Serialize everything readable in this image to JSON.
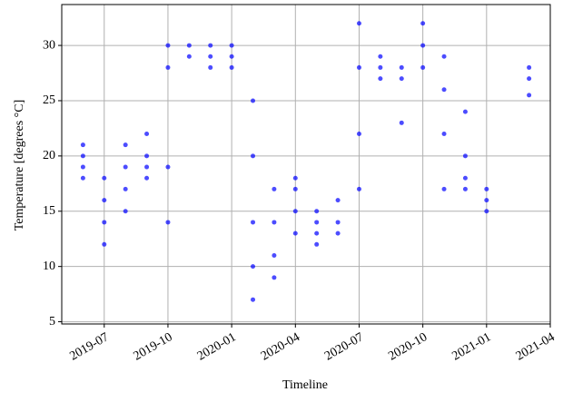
{
  "chart_data": {
    "type": "scatter",
    "xlabel": "Timeline",
    "ylabel": "Temperature [degrees °C]",
    "color": "#0000ff",
    "grid": true,
    "x": [
      "2019-06",
      "2019-06",
      "2019-06",
      "2019-06",
      "2019-07",
      "2019-07",
      "2019-07",
      "2019-07",
      "2019-08",
      "2019-08",
      "2019-08",
      "2019-08",
      "2019-09",
      "2019-09",
      "2019-09",
      "2019-09",
      "2019-10",
      "2019-10",
      "2019-10",
      "2019-10",
      "2019-11",
      "2019-11",
      "2019-12",
      "2019-12",
      "2019-12",
      "2020-01",
      "2020-01",
      "2020-01",
      "2020-02",
      "2020-02",
      "2020-02",
      "2020-02",
      "2020-02",
      "2020-03",
      "2020-03",
      "2020-03",
      "2020-03",
      "2020-04",
      "2020-04",
      "2020-04",
      "2020-04",
      "2020-05",
      "2020-05",
      "2020-05",
      "2020-05",
      "2020-06",
      "2020-06",
      "2020-06",
      "2020-07",
      "2020-07",
      "2020-07",
      "2020-07",
      "2020-08",
      "2020-08",
      "2020-08",
      "2020-09",
      "2020-09",
      "2020-09",
      "2020-10",
      "2020-10",
      "2020-10",
      "2020-11",
      "2020-11",
      "2020-11",
      "2020-11",
      "2020-12",
      "2020-12",
      "2020-12",
      "2020-12",
      "2021-01",
      "2021-01",
      "2021-01",
      "2021-03",
      "2021-03",
      "2021-03"
    ],
    "values": [
      18,
      19,
      20,
      21,
      12,
      14,
      16,
      18,
      15,
      17,
      19,
      21,
      18,
      19,
      20,
      22,
      14,
      19,
      28,
      30,
      29,
      30,
      28,
      29,
      30,
      28,
      29,
      30,
      7,
      10,
      14,
      20,
      25,
      9,
      11,
      14,
      17,
      13,
      15,
      17,
      18,
      12,
      13,
      14,
      15,
      13,
      14,
      16,
      17,
      22,
      28,
      32,
      27,
      28,
      29,
      27,
      28,
      23,
      28,
      30,
      32,
      17,
      22,
      26,
      29,
      17,
      18,
      20,
      24,
      15,
      16,
      17,
      25.5,
      27,
      28
    ],
    "xlim": [
      "2019-05",
      "2021-04"
    ],
    "xticks": [
      "2019-07",
      "2019-10",
      "2020-01",
      "2020-04",
      "2020-07",
      "2020-10",
      "2021-01",
      "2021-04"
    ],
    "ylim": [
      4.8,
      33.7
    ],
    "yticks": [
      5,
      10,
      15,
      20,
      25,
      30
    ]
  }
}
